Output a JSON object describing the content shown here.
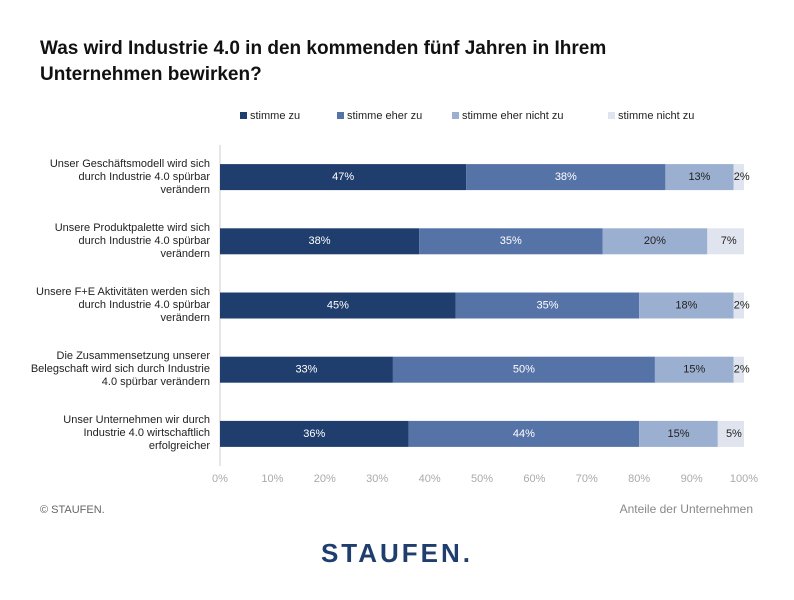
{
  "chart_data": {
    "type": "stacked-bar-horizontal",
    "title": "Was wird Industrie 4.0 in den kommenden fünf Jahren in Ihrem Unternehmen bewirken?",
    "categories": [
      "Unser Geschäftsmodell wird sich durch Industrie 4.0 spürbar verändern",
      "Unsere Produktpalette wird sich durch Industrie 4.0 spürbar verändern",
      "Unsere F+E Aktivitäten werden sich durch Industrie 4.0 spürbar verändern",
      "Die Zusammensetzung unserer Belegschaft wird sich durch Industrie 4.0 spürbar verändern",
      "Unser Unternehmen wir durch Industrie 4.0 wirtschaftlich erfolgreicher"
    ],
    "series": [
      {
        "name": "stimme zu",
        "color": "#1f3e6e",
        "values": [
          47,
          38,
          45,
          33,
          36
        ],
        "value_labels": [
          "47%",
          "38%",
          "45%",
          "33%",
          "36%"
        ]
      },
      {
        "name": "stimme eher zu",
        "color": "#5673a8",
        "values": [
          38,
          35,
          35,
          50,
          44
        ],
        "value_labels": [
          "38%",
          "35%",
          "35%",
          "50%",
          "44%"
        ]
      },
      {
        "name": "stimme eher nicht zu",
        "color": "#9bafd1",
        "values": [
          13,
          20,
          18,
          15,
          15
        ],
        "value_labels": [
          "13%",
          "20%",
          "18%",
          "15%",
          "15%"
        ]
      },
      {
        "name": "stimme nicht zu",
        "color": "#dfe4ef",
        "values": [
          2,
          7,
          2,
          2,
          5
        ],
        "value_labels": [
          "2%",
          "7%",
          "2%",
          "2%",
          "5%"
        ]
      }
    ],
    "xlim": [
      0,
      100
    ],
    "xticks": [
      {
        "value": 0,
        "label": "0%"
      },
      {
        "value": 10,
        "label": "10%"
      },
      {
        "value": 20,
        "label": "20%"
      },
      {
        "value": 30,
        "label": "30%"
      },
      {
        "value": 40,
        "label": "40%"
      },
      {
        "value": 50,
        "label": "50%"
      },
      {
        "value": 60,
        "label": "60%"
      },
      {
        "value": 70,
        "label": "70%"
      },
      {
        "value": 80,
        "label": "80%"
      },
      {
        "value": 90,
        "label": "90%"
      },
      {
        "value": 100,
        "label": "100%"
      }
    ],
    "x_label": "Anteile der Unternehmen",
    "copyright": "© STAUFEN.",
    "logo": "STAUFEN."
  }
}
